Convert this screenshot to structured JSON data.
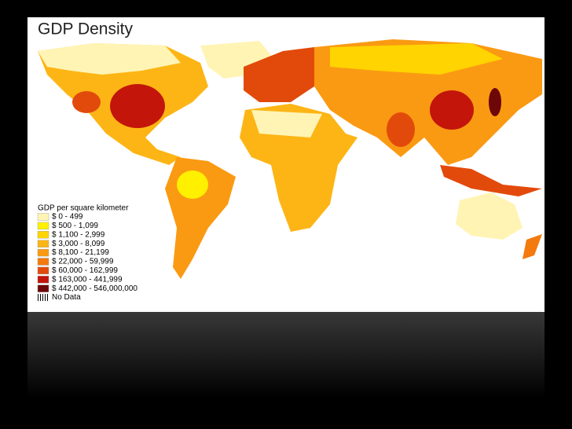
{
  "header": {
    "title": "GDP Density"
  },
  "legend": {
    "title": "GDP per square kilometer",
    "items": [
      {
        "label": "$ 0 - 499",
        "color": "#fff4b4"
      },
      {
        "label": "$ 500 - 1,099",
        "color": "#fff000"
      },
      {
        "label": "$ 1,100 - 2,999",
        "color": "#ffd400"
      },
      {
        "label": "$ 3,000 - 8,099",
        "color": "#fdb515"
      },
      {
        "label": "$ 8,100 - 21,199",
        "color": "#fa9a12"
      },
      {
        "label": "$ 22,000 - 59,999",
        "color": "#f47a0e"
      },
      {
        "label": "$ 60,000 - 162,999",
        "color": "#e24a0b"
      },
      {
        "label": "$ 163,000 - 441,999",
        "color": "#c3150a"
      },
      {
        "label": "$ 442,000 - 546,000,000",
        "color": "#6e0708"
      }
    ],
    "no_data": "No Data"
  }
}
